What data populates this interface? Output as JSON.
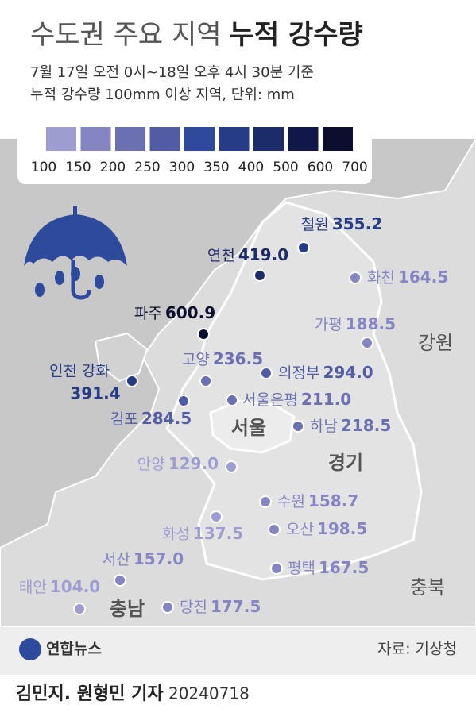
{
  "header": {
    "title_light": "수도권 주요 지역",
    "title_bold": "누적 강수량",
    "subtitle_lines": [
      "7월 17일 오전 0시~18일 오후 4시 30분 기준",
      "누적 강수량 100mm 이상 지역, 단위: mm"
    ]
  },
  "legend": {
    "labels": [
      "100",
      "150",
      "200",
      "250",
      "300",
      "350",
      "400",
      "500",
      "600",
      "700"
    ],
    "colors": [
      "#9d9dd2",
      "#8585c4",
      "#6b70b3",
      "#525ca4",
      "#2f4a9c",
      "#263c86",
      "#1c2b69",
      "#111849",
      "#0b0f2d"
    ]
  },
  "stations": [
    {
      "name": "철원",
      "value": "355.2",
      "color": "#263c86"
    },
    {
      "name": "연천",
      "value": "419.0",
      "color": "#1c2b69"
    },
    {
      "name": "화천",
      "value": "164.5",
      "color": "#8585c4"
    },
    {
      "name": "파주",
      "value": "600.9",
      "color": "#0b0f2d"
    },
    {
      "name": "가평",
      "value": "188.5",
      "color": "#8585c4"
    },
    {
      "name": "고양",
      "value": "236.5",
      "color": "#6b70b3"
    },
    {
      "name": "의정부",
      "value": "294.0",
      "color": "#525ca4"
    },
    {
      "name": "인천 강화",
      "value": "391.4",
      "color": "#263c86"
    },
    {
      "name": "김포",
      "value": "284.5",
      "color": "#525ca4"
    },
    {
      "name": "서울은평",
      "value": "211.0",
      "color": "#6b70b3"
    },
    {
      "name": "하남",
      "value": "218.5",
      "color": "#6b70b3"
    },
    {
      "name": "안양",
      "value": "129.0",
      "color": "#9d9dd2"
    },
    {
      "name": "수원",
      "value": "158.7",
      "color": "#8585c4"
    },
    {
      "name": "화성",
      "value": "137.5",
      "color": "#9d9dd2"
    },
    {
      "name": "오산",
      "value": "198.5",
      "color": "#8585c4"
    },
    {
      "name": "평택",
      "value": "167.5",
      "color": "#8585c4"
    },
    {
      "name": "서산",
      "value": "157.0",
      "color": "#8585c4"
    },
    {
      "name": "태안",
      "value": "104.0",
      "color": "#9d9dd2"
    },
    {
      "name": "당진",
      "value": "177.5",
      "color": "#8585c4"
    }
  ],
  "regions": [
    "강원",
    "서울",
    "경기",
    "충북",
    "충남"
  ],
  "footer": {
    "logo": "연합뉴스",
    "source": "자료: 기상청",
    "reporter": "김민지. 원형민 기자",
    "date": "20240718"
  }
}
